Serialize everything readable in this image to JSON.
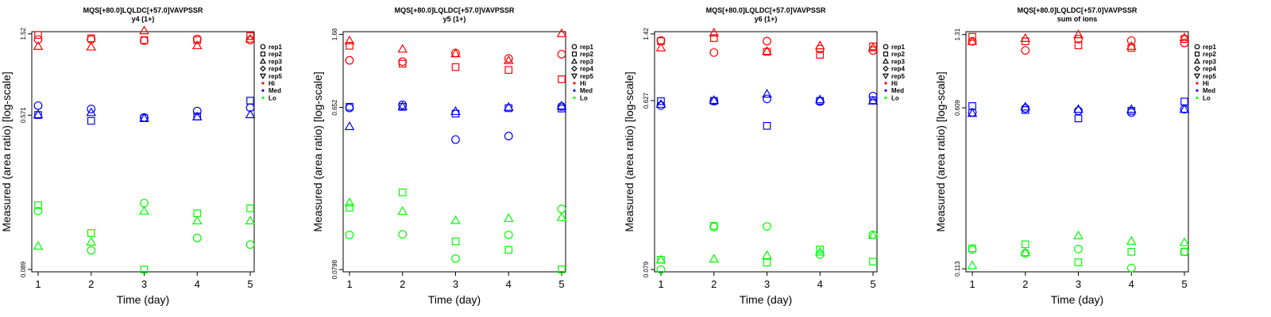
{
  "chart_data": [
    {
      "type": "scatter",
      "title": "MQS[+80.0]LQLDC[+57.0]VAVPSSR",
      "subtitle": "y4 (1+)",
      "xlabel": "Time (day)",
      "ylabel": "Measured (area ratio) [log-scale]",
      "log_y": true,
      "x_ticks": [
        "1",
        "2",
        "3",
        "4",
        "5"
      ],
      "y_ticks": [
        {
          "label": "1.52",
          "value": 1.52
        },
        {
          "label": "0.571",
          "value": 0.571
        },
        {
          "label": "0.089",
          "value": 0.089
        }
      ],
      "ylim": [
        0.0865,
        1.56
      ],
      "colors": {
        "Hi": "#ff0000",
        "Med": "#0000ff",
        "Lo": "#00ff00"
      },
      "series": [
        {
          "label": "rep1",
          "marker": "circle",
          "Hi": [
            1.42,
            1.42,
            1.4,
            1.43,
            1.41
          ],
          "Med": [
            0.64,
            0.615,
            0.555,
            0.6,
            0.625
          ],
          "Lo": [
            0.18,
            0.112,
            0.198,
            0.13,
            0.12
          ]
        },
        {
          "label": "rep2",
          "marker": "square",
          "Hi": [
            1.5,
            1.44,
            1.41,
            1.41,
            1.48
          ],
          "Med": [
            0.572,
            0.533,
            0.55,
            0.562,
            0.68
          ],
          "Lo": [
            0.193,
            0.138,
            0.089,
            0.175,
            0.186
          ]
        },
        {
          "label": "rep3",
          "marker": "triangle-up",
          "Hi": [
            1.31,
            1.3,
            1.58,
            1.32,
            1.43
          ],
          "Med": [
            0.575,
            0.59,
            0.55,
            0.56,
            0.575
          ],
          "Lo": [
            0.118,
            0.124,
            0.18,
            0.16,
            0.16
          ]
        },
        {
          "label": "rep4",
          "marker": "diamond",
          "Hi": [],
          "Med": [],
          "Lo": []
        },
        {
          "label": "rep5",
          "marker": "triangle-down",
          "Hi": [],
          "Med": [],
          "Lo": []
        }
      ],
      "legend": {
        "position": "right",
        "entries": [
          {
            "label": "rep1",
            "marker": "circle",
            "color": "#000000"
          },
          {
            "label": "rep2",
            "marker": "square",
            "color": "#000000"
          },
          {
            "label": "rep3",
            "marker": "triangle-up",
            "color": "#000000"
          },
          {
            "label": "rep4",
            "marker": "diamond",
            "color": "#000000"
          },
          {
            "label": "rep5",
            "marker": "triangle-down",
            "color": "#000000"
          },
          {
            "label": "Hi",
            "marker": "dot",
            "color": "#ff0000"
          },
          {
            "label": "Med",
            "marker": "dot",
            "color": "#0000ff"
          },
          {
            "label": "Lo",
            "marker": "dot",
            "color": "#00ff00"
          }
        ]
      }
    },
    {
      "type": "scatter",
      "title": "MQS[+80.0]LQLDC[+57.0]VAVPSSR",
      "subtitle": "y5 (1+)",
      "xlabel": "Time (day)",
      "ylabel": "Measured (area ratio) [log-scale]",
      "log_y": true,
      "x_ticks": [
        "1",
        "2",
        "3",
        "4",
        "5"
      ],
      "y_ticks": [
        {
          "label": "1.68",
          "value": 1.68
        },
        {
          "label": "0.652",
          "value": 0.652
        },
        {
          "label": "0.0798",
          "value": 0.0798
        }
      ],
      "ylim": [
        0.0775,
        1.74
      ],
      "colors": {
        "Hi": "#ff0000",
        "Med": "#0000ff",
        "Lo": "#00ff00"
      },
      "series": [
        {
          "label": "rep1",
          "marker": "circle",
          "Hi": [
            1.2,
            1.18,
            1.32,
            1.23,
            1.3
          ],
          "Med": [
            0.648,
            0.675,
            0.43,
            0.45,
            0.66
          ],
          "Lo": [
            0.125,
            0.126,
            0.092,
            0.125,
            0.175
          ]
        },
        {
          "label": "rep2",
          "marker": "square",
          "Hi": [
            1.45,
            1.15,
            1.1,
            1.06,
            0.94
          ],
          "Med": [
            0.658,
            0.657,
            0.602,
            0.646,
            0.643
          ],
          "Lo": [
            0.178,
            0.217,
            0.115,
            0.103,
            0.08
          ]
        },
        {
          "label": "rep3",
          "marker": "triangle-up",
          "Hi": [
            1.55,
            1.39,
            1.31,
            1.2,
            1.7
          ],
          "Med": [
            0.51,
            0.66,
            0.62,
            0.655,
            0.665
          ],
          "Lo": [
            0.19,
            0.17,
            0.151,
            0.155,
            0.157
          ]
        },
        {
          "label": "rep4",
          "marker": "diamond",
          "Hi": [],
          "Med": [],
          "Lo": []
        },
        {
          "label": "rep5",
          "marker": "triangle-down",
          "Hi": [],
          "Med": [],
          "Lo": []
        }
      ],
      "legend": {
        "position": "right",
        "entries": [
          {
            "label": "rep1",
            "marker": "circle",
            "color": "#000000"
          },
          {
            "label": "rep2",
            "marker": "square",
            "color": "#000000"
          },
          {
            "label": "rep3",
            "marker": "triangle-up",
            "color": "#000000"
          },
          {
            "label": "rep4",
            "marker": "diamond",
            "color": "#000000"
          },
          {
            "label": "rep5",
            "marker": "triangle-down",
            "color": "#000000"
          },
          {
            "label": "Hi",
            "marker": "dot",
            "color": "#ff0000"
          },
          {
            "label": "Med",
            "marker": "dot",
            "color": "#0000ff"
          },
          {
            "label": "Lo",
            "marker": "dot",
            "color": "#00ff00"
          }
        ]
      }
    },
    {
      "type": "scatter",
      "title": "MQS[+80.0]LQLDC[+57.0]VAVPSSR",
      "subtitle": "y6 (1+)",
      "xlabel": "Time (day)",
      "ylabel": "Measured (area ratio) [log-scale]",
      "log_y": true,
      "x_ticks": [
        "1",
        "2",
        "3",
        "4",
        "5"
      ],
      "y_ticks": [
        {
          "label": "1.42",
          "value": 1.42
        },
        {
          "label": "0.627",
          "value": 0.627
        },
        {
          "label": "0.079",
          "value": 0.079
        }
      ],
      "ylim": [
        0.0768,
        1.46
      ],
      "colors": {
        "Hi": "#ff0000",
        "Med": "#0000ff",
        "Lo": "#00ff00"
      },
      "series": [
        {
          "label": "rep1",
          "marker": "circle",
          "Hi": [
            1.31,
            1.13,
            1.3,
            1.18,
            1.16
          ],
          "Med": [
            0.59,
            0.623,
            0.64,
            0.62,
            0.663
          ],
          "Lo": [
            0.079,
            0.133,
            0.134,
            0.095,
            0.121
          ]
        },
        {
          "label": "rep2",
          "marker": "square",
          "Hi": [
            1.3,
            1.35,
            1.14,
            1.1,
            1.22
          ],
          "Med": [
            0.623,
            0.625,
            0.46,
            0.625,
            0.63
          ],
          "Lo": [
            0.089,
            0.135,
            0.086,
            0.101,
            0.087
          ]
        },
        {
          "label": "rep3",
          "marker": "triangle-up",
          "Hi": [
            1.2,
            1.44,
            1.15,
            1.23,
            1.2
          ],
          "Med": [
            0.6,
            0.63,
            0.68,
            0.635,
            0.625
          ],
          "Lo": [
            0.089,
            0.09,
            0.094,
            0.098,
            0.12
          ]
        },
        {
          "label": "rep4",
          "marker": "diamond",
          "Hi": [],
          "Med": [],
          "Lo": []
        },
        {
          "label": "rep5",
          "marker": "triangle-down",
          "Hi": [],
          "Med": [],
          "Lo": []
        }
      ],
      "legend": {
        "position": "right",
        "entries": [
          {
            "label": "rep1",
            "marker": "circle",
            "color": "#000000"
          },
          {
            "label": "rep2",
            "marker": "square",
            "color": "#000000"
          },
          {
            "label": "rep3",
            "marker": "triangle-up",
            "color": "#000000"
          },
          {
            "label": "rep4",
            "marker": "diamond",
            "color": "#000000"
          },
          {
            "label": "rep5",
            "marker": "triangle-down",
            "color": "#000000"
          },
          {
            "label": "Hi",
            "marker": "dot",
            "color": "#ff0000"
          },
          {
            "label": "Med",
            "marker": "dot",
            "color": "#0000ff"
          },
          {
            "label": "Lo",
            "marker": "dot",
            "color": "#00ff00"
          }
        ]
      }
    },
    {
      "type": "scatter",
      "title": "MQS[+80.0]LQLDC[+57.0]VAVPSSR",
      "subtitle": "sum of ions",
      "xlabel": "Time (day)",
      "ylabel": "Measured (area ratio) [log-scale]",
      "log_y": true,
      "x_ticks": [
        "1",
        "2",
        "3",
        "4",
        "5"
      ],
      "y_ticks": [
        {
          "label": "1.31",
          "value": 1.31
        },
        {
          "label": "0.609",
          "value": 0.609
        },
        {
          "label": "0.113",
          "value": 0.113
        }
      ],
      "ylim": [
        0.1095,
        1.35
      ],
      "colors": {
        "Hi": "#ff0000",
        "Med": "#0000ff",
        "Lo": "#00ff00"
      },
      "series": [
        {
          "label": "rep1",
          "marker": "circle",
          "Hi": [
            1.22,
            1.11,
            1.25,
            1.23,
            1.2
          ],
          "Med": [
            0.58,
            0.605,
            0.59,
            0.58,
            0.6
          ],
          "Lo": [
            0.138,
            0.133,
            0.139,
            0.114,
            0.135
          ]
        },
        {
          "label": "rep2",
          "marker": "square",
          "Hi": [
            1.28,
            1.22,
            1.17,
            1.14,
            1.25
          ],
          "Med": [
            0.62,
            0.595,
            0.545,
            0.59,
            0.65
          ],
          "Lo": [
            0.14,
            0.146,
            0.121,
            0.135,
            0.135
          ]
        },
        {
          "label": "rep3",
          "marker": "triangle-up",
          "Hi": [
            1.22,
            1.26,
            1.31,
            1.16,
            1.27
          ],
          "Med": [
            0.575,
            0.615,
            0.6,
            0.6,
            0.6
          ],
          "Lo": [
            0.117,
            0.134,
            0.16,
            0.151,
            0.149
          ]
        },
        {
          "label": "rep4",
          "marker": "diamond",
          "Hi": [],
          "Med": [],
          "Lo": []
        },
        {
          "label": "rep5",
          "marker": "triangle-down",
          "Hi": [],
          "Med": [],
          "Lo": []
        }
      ],
      "legend": {
        "position": "right",
        "entries": [
          {
            "label": "rep1",
            "marker": "circle",
            "color": "#000000"
          },
          {
            "label": "rep2",
            "marker": "square",
            "color": "#000000"
          },
          {
            "label": "rep3",
            "marker": "triangle-up",
            "color": "#000000"
          },
          {
            "label": "rep4",
            "marker": "diamond",
            "color": "#000000"
          },
          {
            "label": "rep5",
            "marker": "triangle-down",
            "color": "#000000"
          },
          {
            "label": "Hi",
            "marker": "dot",
            "color": "#ff0000"
          },
          {
            "label": "Med",
            "marker": "dot",
            "color": "#0000ff"
          },
          {
            "label": "Lo",
            "marker": "dot",
            "color": "#00ff00"
          }
        ]
      }
    }
  ]
}
